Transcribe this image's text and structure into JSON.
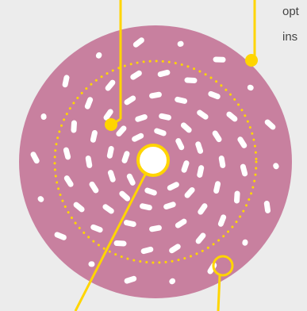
{
  "labels": {
    "line1": "opt",
    "line2": "ins"
  }
}
